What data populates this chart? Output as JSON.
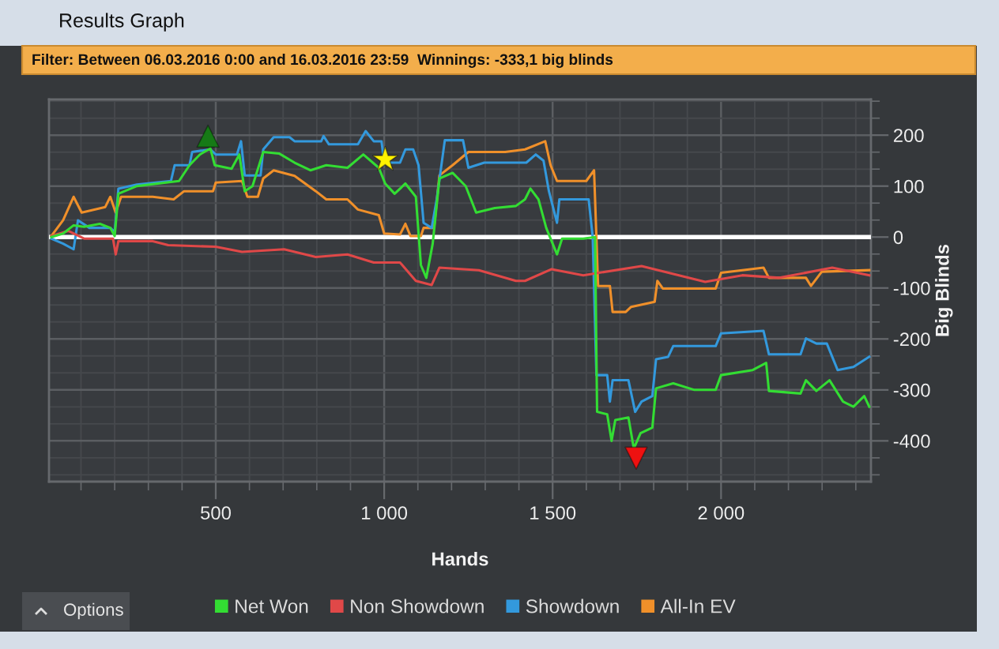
{
  "chart_data": {
    "type": "line",
    "title": "Results Graph",
    "subtitle": "Filter: Between 06.03.2016 0:00 and 16.03.2016 23:59  Winnings: -333,1 big blinds",
    "xlabel": "Hands",
    "ylabel": "Big Blinds",
    "annotations": [
      "Options"
    ],
    "xlim": [
      5,
      2445
    ],
    "xticks": [
      500,
      {
        "value": 1000,
        "label": "1 000"
      },
      {
        "value": 1500,
        "label": "1 500"
      },
      {
        "value": 2000,
        "label": "2 000"
      }
    ],
    "ylim": [
      -480,
      270
    ],
    "yticks": [
      -400,
      -300,
      -200,
      -100,
      0,
      100,
      200
    ],
    "grid": true,
    "legend": "bottom",
    "marker": "none",
    "line_style": "solid",
    "ref_lines": [
      {
        "axis": "y",
        "value": 0,
        "color": "#ffffff"
      }
    ],
    "series": [
      {
        "name": "Net Won",
        "color": "#33dd33",
        "x": [
          12,
          47,
          78,
          109,
          156,
          187,
          200,
          211,
          266,
          328,
          391,
          422,
          453,
          484,
          497,
          547,
          570,
          586,
          609,
          641,
          688,
          734,
          781,
          828,
          891,
          938,
          984,
          1003,
          1031,
          1063,
          1094,
          1109,
          1125,
          1144,
          1164,
          1203,
          1242,
          1273,
          1328,
          1391,
          1418,
          1434,
          1458,
          1481,
          1513,
          1528,
          1591,
          1626,
          1632,
          1662,
          1675,
          1686,
          1725,
          1741,
          1761,
          1796,
          1807,
          1858,
          1921,
          1984,
          2000,
          2094,
          2134,
          2142,
          2236,
          2252,
          2283,
          2322,
          2362,
          2393,
          2425,
          2440
        ],
        "values": [
          0,
          7,
          23,
          20,
          26,
          18,
          2,
          85,
          100,
          105,
          110,
          141,
          162,
          174,
          141,
          134,
          162,
          90,
          100,
          167,
          164,
          146,
          131,
          141,
          136,
          162,
          136,
          105,
          85,
          105,
          79,
          -55,
          -80,
          -13,
          115,
          126,
          100,
          48,
          57,
          61,
          74,
          95,
          74,
          18,
          -34,
          -3,
          -3,
          0,
          -343,
          -348,
          -400,
          -359,
          -354,
          -415,
          -385,
          -374,
          -297,
          -287,
          -300,
          -300,
          -271,
          -261,
          -247,
          -302,
          -307,
          -281,
          -302,
          -281,
          -323,
          -333,
          -312,
          -333
        ]
      },
      {
        "name": "Non Showdown",
        "color": "#e04848",
        "x": [
          12,
          62,
          109,
          195,
          203,
          211,
          313,
          359,
          500,
          578,
          703,
          797,
          891,
          969,
          1047,
          1094,
          1141,
          1164,
          1281,
          1391,
          1418,
          1497,
          1591,
          1764,
          1953,
          2063,
          2173,
          2330,
          2440
        ],
        "values": [
          2,
          12,
          -3,
          -3,
          -34,
          -8,
          -8,
          -16,
          -19,
          -29,
          -24,
          -39,
          -34,
          -50,
          -50,
          -86,
          -94,
          -60,
          -65,
          -86,
          -86,
          -63,
          -75,
          -57,
          -88,
          -75,
          -80,
          -60,
          -75
        ]
      },
      {
        "name": "Showdown",
        "color": "#3399dd",
        "x": [
          12,
          47,
          78,
          91,
          125,
          187,
          200,
          211,
          266,
          367,
          378,
          422,
          430,
          484,
          500,
          563,
          575,
          586,
          633,
          641,
          672,
          719,
          734,
          813,
          820,
          836,
          922,
          945,
          969,
          992,
          1000,
          1047,
          1063,
          1086,
          1102,
          1117,
          1141,
          1156,
          1180,
          1234,
          1250,
          1297,
          1422,
          1450,
          1473,
          1489,
          1513,
          1520,
          1607,
          1619,
          1630,
          1662,
          1670,
          1678,
          1725,
          1745,
          1764,
          1796,
          1807,
          1843,
          1858,
          1984,
          2000,
          2126,
          2142,
          2236,
          2252,
          2283,
          2314,
          2346,
          2393,
          2440
        ],
        "values": [
          -3,
          -13,
          -24,
          33,
          18,
          18,
          10,
          95,
          103,
          110,
          141,
          141,
          167,
          172,
          162,
          162,
          188,
          121,
          121,
          172,
          196,
          196,
          188,
          188,
          198,
          182,
          182,
          208,
          188,
          188,
          146,
          146,
          172,
          172,
          141,
          28,
          18,
          74,
          190,
          190,
          136,
          146,
          146,
          162,
          150,
          90,
          28,
          74,
          74,
          0,
          -271,
          -271,
          -323,
          -281,
          -281,
          -343,
          -323,
          -312,
          -240,
          -235,
          -214,
          -214,
          -189,
          -184,
          -230,
          -230,
          -199,
          -209,
          -209,
          -261,
          -255,
          -235
        ]
      },
      {
        "name": "All-In EV",
        "color": "#f0902a",
        "x": [
          12,
          47,
          78,
          102,
          172,
          187,
          203,
          219,
          313,
          375,
          406,
          492,
          500,
          578,
          594,
          625,
          641,
          672,
          734,
          797,
          828,
          891,
          922,
          984,
          1000,
          1047,
          1063,
          1078,
          1109,
          1117,
          1148,
          1164,
          1203,
          1250,
          1359,
          1418,
          1478,
          1494,
          1513,
          1600,
          1623,
          1635,
          1670,
          1678,
          1717,
          1733,
          1803,
          1811,
          1827,
          1984,
          2000,
          2126,
          2142,
          2252,
          2267,
          2299,
          2440
        ],
        "values": [
          2,
          33,
          79,
          48,
          59,
          79,
          48,
          79,
          79,
          74,
          90,
          90,
          107,
          110,
          79,
          79,
          115,
          131,
          120,
          90,
          74,
          74,
          54,
          43,
          7,
          5,
          26,
          2,
          2,
          18,
          18,
          121,
          141,
          167,
          167,
          172,
          188,
          141,
          110,
          110,
          131,
          -96,
          -96,
          -147,
          -147,
          -137,
          -127,
          -86,
          -101,
          -101,
          -70,
          -60,
          -80,
          -80,
          -96,
          -68,
          -65
        ]
      },
      {
        "type": "scatter",
        "marker": "triangle",
        "color": "#167a16",
        "x": [
          477
        ],
        "values": [
          198
        ]
      },
      {
        "type": "scatter",
        "marker": "star",
        "color": "#fff200",
        "x": [
          1003
        ],
        "values": [
          152
        ]
      },
      {
        "type": "scatter",
        "marker": "triangle_down",
        "color": "#ee1111",
        "x": [
          1748
        ],
        "values": [
          -434
        ]
      }
    ]
  }
}
